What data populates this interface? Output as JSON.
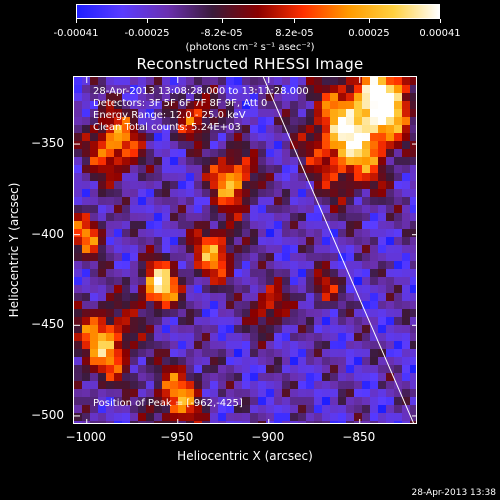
{
  "colorbar": {
    "ticks": [
      "-0.00041",
      "-0.00025",
      "-8.2e-05",
      "8.2e-05",
      "0.00025",
      "0.00041"
    ],
    "tick_values": [
      -0.00041,
      -0.00025,
      -8.2e-05,
      8.2e-05,
      0.00025,
      0.00041
    ],
    "units": "(photons cm⁻² s⁻¹ asec⁻²)",
    "range": [
      -0.00041,
      0.00041
    ]
  },
  "chart_data": {
    "type": "heatmap",
    "title": "Reconstructed RHESSI Image",
    "xlabel": "Heliocentric X (arcsec)",
    "ylabel": "Heliocentric Y (arcsec)",
    "xlim": [
      -1007,
      -818
    ],
    "ylim": [
      -505,
      -313
    ],
    "xticks": [
      -1000,
      -950,
      -900,
      -850
    ],
    "yticks": [
      -350,
      -400,
      -450,
      -500
    ],
    "xtick_labels": [
      "−1000",
      "−950",
      "−900",
      "−850"
    ],
    "ytick_labels": [
      "−350",
      "−400",
      "−450",
      "−500"
    ],
    "info_lines": [
      "28-Apr-2013 13:08:28.000 to 13:11:28.000",
      "Detectors: 3F 5F 6F 7F 8F 9F, Att 0",
      "Energy Range: 12.0 - 25.0 keV",
      "Clean     Total counts: 5.24E+03"
    ],
    "peak_label": "Position of Peak = [-962,-425]",
    "peak_position": [
      -962,
      -425
    ],
    "limb_line": [
      [
        -903,
        -313
      ],
      [
        -820,
        -505
      ]
    ],
    "colormap": [
      "#1e1eff",
      "#5a3cff",
      "#6a30b0",
      "#3a1a3a",
      "#8a0000",
      "#ff3000",
      "#ff9a00",
      "#ffd040",
      "#ffffff"
    ]
  },
  "timestamp": "28-Apr-2013 13:38"
}
